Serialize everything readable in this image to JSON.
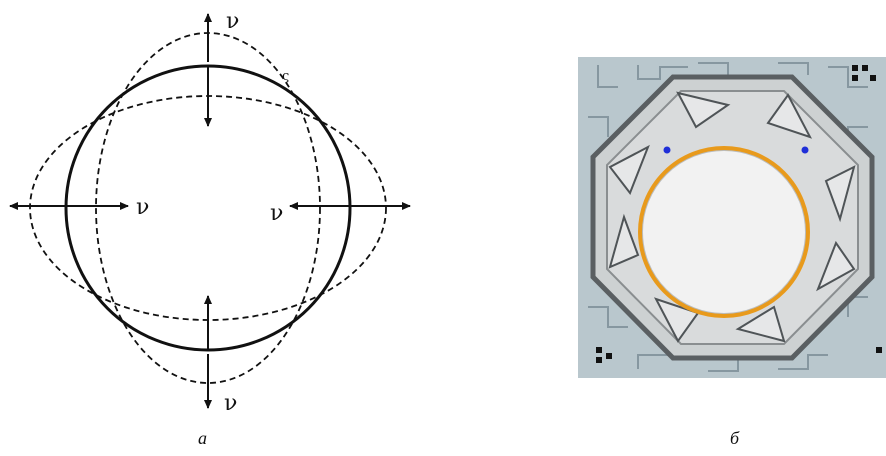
{
  "diagram_a": {
    "labels": {
      "top": "ν",
      "bottom": "ν",
      "left": "ν",
      "right": "ν"
    },
    "marker": "ς"
  },
  "captions": {
    "a": "а",
    "b": "б"
  },
  "colors": {
    "ink": "#111111",
    "chip_background": "#b9c7cd",
    "chip_frame": "#c8cccd",
    "ring": "#e89a1c",
    "electrode_dot": "#1f2fd8"
  }
}
